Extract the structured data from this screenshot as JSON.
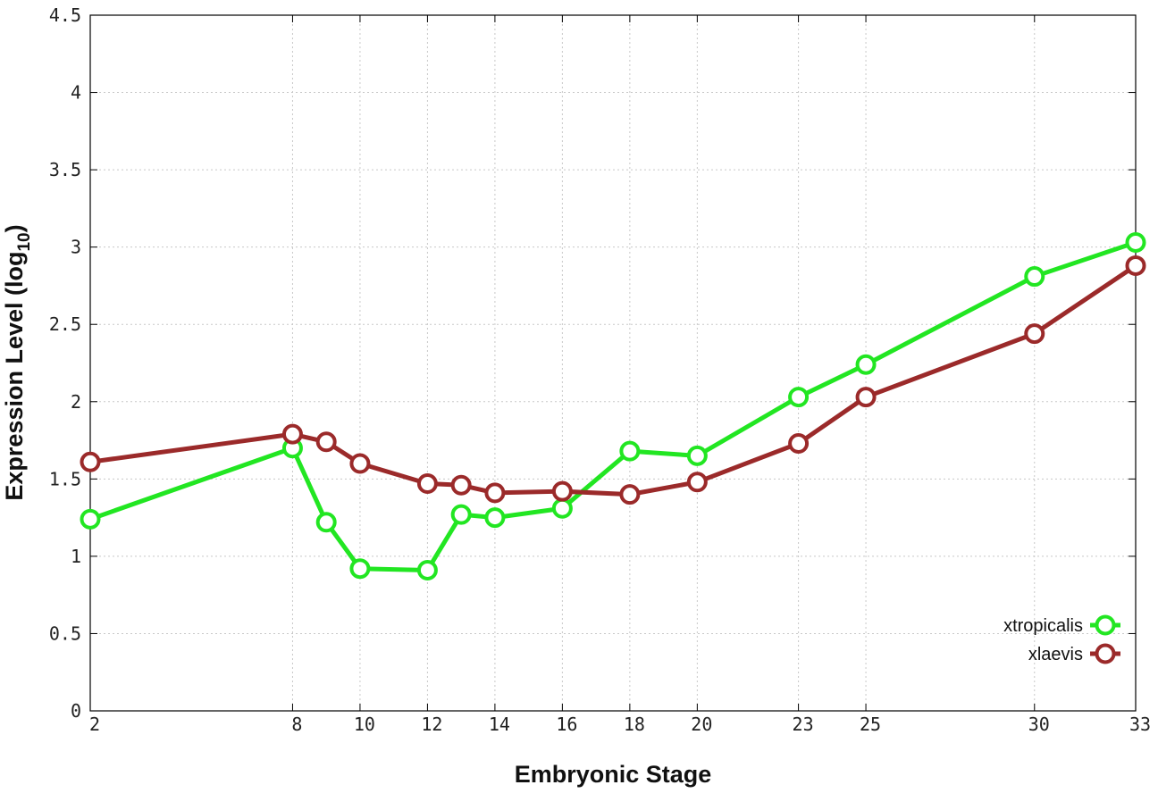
{
  "chart_data": {
    "type": "line",
    "xlabel": "Embryonic Stage",
    "ylabel": "Expression Level (log",
    "ylabel_sub": "10",
    "ylabel_close": ")",
    "xlim": [
      2,
      33
    ],
    "ylim": [
      0,
      4.5
    ],
    "x_ticks": [
      2,
      8,
      10,
      12,
      14,
      16,
      18,
      20,
      23,
      25,
      30,
      33
    ],
    "y_ticks": [
      0,
      0.5,
      1,
      1.5,
      2,
      2.5,
      3,
      3.5,
      4,
      4.5
    ],
    "y_tick_labels": [
      "0",
      "0.5",
      "1",
      "1.5",
      "2",
      "2.5",
      "3",
      "3.5",
      "4",
      "4.5"
    ],
    "grid": true,
    "legend_position": "bottom-right",
    "series": [
      {
        "name": "xtropicalis",
        "color": "#22e622",
        "x": [
          2,
          8,
          9,
          10,
          12,
          13,
          14,
          16,
          18,
          20,
          23,
          25,
          30,
          33
        ],
        "y": [
          1.24,
          1.7,
          1.22,
          0.92,
          0.91,
          1.27,
          1.25,
          1.31,
          1.68,
          1.65,
          2.03,
          2.24,
          2.81,
          3.03
        ]
      },
      {
        "name": "xlaevis",
        "color": "#9b2a2a",
        "x": [
          2,
          8,
          9,
          10,
          12,
          13,
          14,
          16,
          18,
          20,
          23,
          25,
          30,
          33
        ],
        "y": [
          1.61,
          1.79,
          1.74,
          1.6,
          1.47,
          1.46,
          1.41,
          1.42,
          1.4,
          1.48,
          1.73,
          2.03,
          2.44,
          2.88
        ]
      }
    ]
  }
}
